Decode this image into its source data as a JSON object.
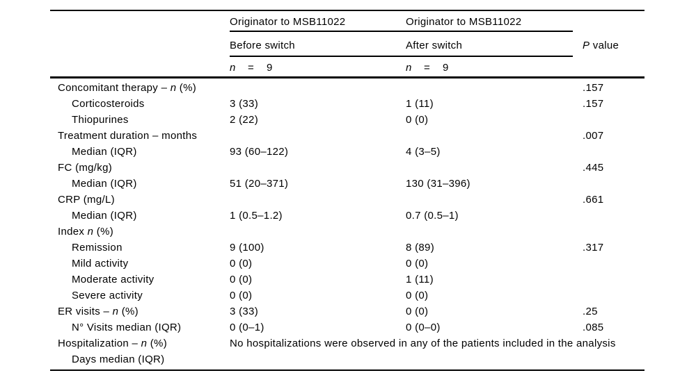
{
  "page": {
    "background": "#ffffff",
    "text_color": "#000000"
  },
  "table": {
    "header": {
      "group1_title": "Originator to MSB11022",
      "group2_title": "Originator to MSB11022",
      "sub1": "Before switch",
      "sub2": "After switch",
      "p_header": {
        "italic": "P",
        "rest": " value"
      },
      "n1": {
        "sym": "n",
        "eq": "=",
        "val": "9"
      },
      "n2": {
        "sym": "n",
        "eq": "=",
        "val": "9"
      }
    },
    "rows": [
      {
        "label": [
          {
            "text": "Concomitant therapy – "
          },
          {
            "text": "n",
            "italic": true
          },
          {
            "text": " (%)"
          }
        ],
        "indent": false,
        "before": "",
        "after": "",
        "p": ".157"
      },
      {
        "label": [
          {
            "text": "Corticosteroids"
          }
        ],
        "indent": true,
        "before": "3 (33)",
        "after": "1 (11)",
        "p": ".157"
      },
      {
        "label": [
          {
            "text": "Thiopurines"
          }
        ],
        "indent": true,
        "before": "2 (22)",
        "after": "0 (0)",
        "p": ""
      },
      {
        "label": [
          {
            "text": "Treatment duration – months"
          }
        ],
        "indent": false,
        "before": "",
        "after": "",
        "p": ".007"
      },
      {
        "label": [
          {
            "text": "Median (IQR)"
          }
        ],
        "indent": true,
        "before": "93 (60–122)",
        "after": "4 (3–5)",
        "p": ""
      },
      {
        "label": [
          {
            "text": "FC (mg/kg)"
          }
        ],
        "indent": false,
        "before": "",
        "after": "",
        "p": ".445"
      },
      {
        "label": [
          {
            "text": "Median (IQR)"
          }
        ],
        "indent": true,
        "before": "51 (20–371)",
        "after": "130 (31–396)",
        "p": ""
      },
      {
        "label": [
          {
            "text": "CRP (mg/L)"
          }
        ],
        "indent": false,
        "before": "",
        "after": "",
        "p": ".661"
      },
      {
        "label": [
          {
            "text": "Median (IQR)"
          }
        ],
        "indent": true,
        "before": "1 (0.5–1.2)",
        "after": "0.7 (0.5–1)",
        "p": ""
      },
      {
        "label": [
          {
            "text": "Index "
          },
          {
            "text": "n",
            "italic": true
          },
          {
            "text": " (%)"
          }
        ],
        "indent": false,
        "before": "",
        "after": "",
        "p": ""
      },
      {
        "label": [
          {
            "text": "Remission"
          }
        ],
        "indent": true,
        "before": "9 (100)",
        "after": "8 (89)",
        "p": ".317"
      },
      {
        "label": [
          {
            "text": "Mild activity"
          }
        ],
        "indent": true,
        "before": "0 (0)",
        "after": "0 (0)",
        "p": ""
      },
      {
        "label": [
          {
            "text": "Moderate activity"
          }
        ],
        "indent": true,
        "before": "0 (0)",
        "after": "1 (11)",
        "p": ""
      },
      {
        "label": [
          {
            "text": "Severe activity"
          }
        ],
        "indent": true,
        "before": "0 (0)",
        "after": "0 (0)",
        "p": ""
      },
      {
        "label": [
          {
            "text": "ER visits – "
          },
          {
            "text": "n",
            "italic": true
          },
          {
            "text": " (%)"
          }
        ],
        "indent": false,
        "before": "3 (33)",
        "after": "0 (0)",
        "p": ".25"
      },
      {
        "label": [
          {
            "text": "N° Visits median (IQR)"
          }
        ],
        "indent": true,
        "before": "0 (0–1)",
        "after": "0 (0–0)",
        "p": ".085"
      },
      {
        "label": [
          {
            "text": "Hospitalization – "
          },
          {
            "text": "n",
            "italic": true
          },
          {
            "text": " (%)"
          }
        ],
        "indent": false,
        "span_text": "No hospitalizations were observed in any of the patients included in the analysis",
        "p": ""
      },
      {
        "label": [
          {
            "text": "Days median (IQR)"
          }
        ],
        "indent": true,
        "before": "",
        "after": "",
        "p": ""
      }
    ]
  }
}
